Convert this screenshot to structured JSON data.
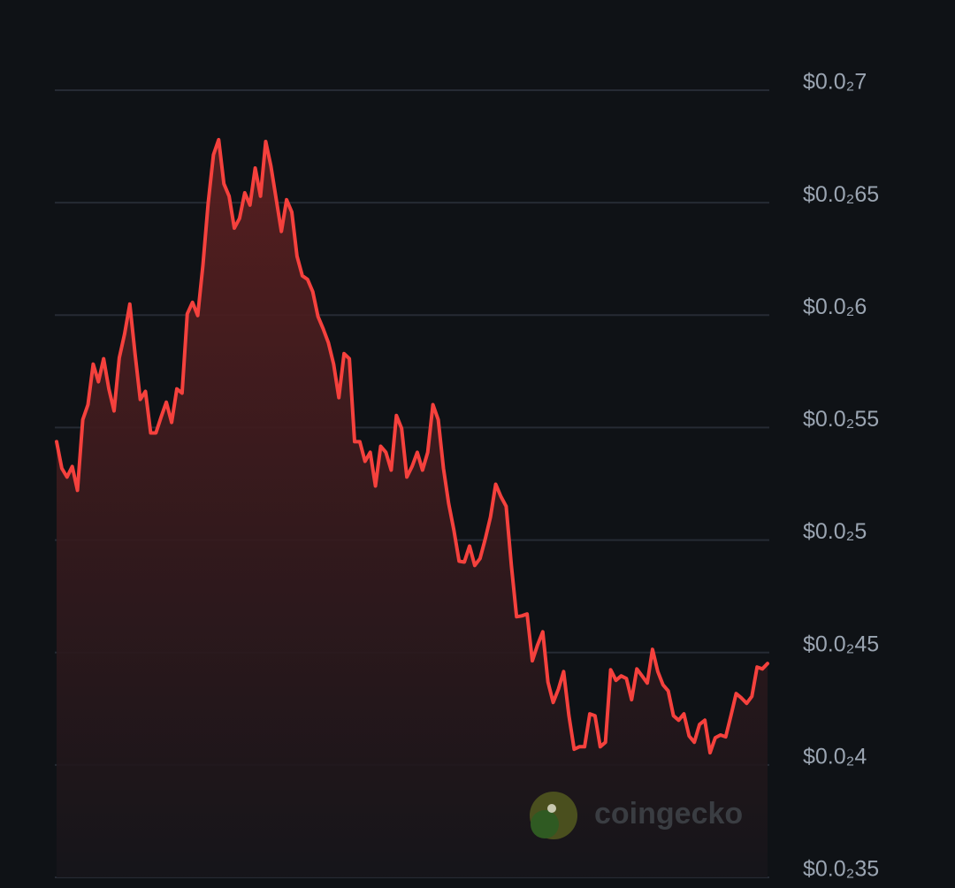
{
  "chart_data": {
    "type": "line",
    "watermark": "coingecko",
    "color": "#f5413d",
    "grid": true,
    "ylim": [
      0.0035,
      0.007
    ],
    "yticks": [
      {
        "value": 0.007,
        "label": "$0.0₂7"
      },
      {
        "value": 0.0065,
        "label": "$0.0₂65"
      },
      {
        "value": 0.006,
        "label": "$0.0₂6"
      },
      {
        "value": 0.0055,
        "label": "$0.0₂55"
      },
      {
        "value": 0.005,
        "label": "$0.0₂5"
      },
      {
        "value": 0.0045,
        "label": "$0.0₂45"
      },
      {
        "value": 0.004,
        "label": "$0.0₂4"
      },
      {
        "value": 0.0035,
        "label": "$0.0₂35"
      }
    ],
    "values": [
      0.005437,
      0.005319,
      0.00528,
      0.005327,
      0.005221,
      0.005535,
      0.005602,
      0.005782,
      0.005704,
      0.005806,
      0.005672,
      0.005574,
      0.00581,
      0.005916,
      0.006049,
      0.005829,
      0.005625,
      0.005661,
      0.005476,
      0.005476,
      0.005547,
      0.005613,
      0.005523,
      0.005672,
      0.005653,
      0.006006,
      0.006057,
      0.005998,
      0.006222,
      0.006497,
      0.006713,
      0.00678,
      0.006584,
      0.006529,
      0.006387,
      0.00643,
      0.006544,
      0.006489,
      0.006654,
      0.006529,
      0.006772,
      0.006662,
      0.006517,
      0.006372,
      0.006513,
      0.006458,
      0.006262,
      0.006175,
      0.006159,
      0.006104,
      0.005994,
      0.005939,
      0.005877,
      0.005782,
      0.005633,
      0.005829,
      0.005806,
      0.005437,
      0.005437,
      0.00535,
      0.00539,
      0.00524,
      0.005417,
      0.00539,
      0.005311,
      0.005554,
      0.005496,
      0.00528,
      0.005327,
      0.00539,
      0.005311,
      0.00539,
      0.005602,
      0.005535,
      0.005319,
      0.005162,
      0.005044,
      0.004906,
      0.004902,
      0.004973,
      0.004887,
      0.004918,
      0.005005,
      0.005103,
      0.005248,
      0.005193,
      0.00515,
      0.004887,
      0.004659,
      0.004663,
      0.004671,
      0.004463,
      0.004533,
      0.004592,
      0.004368,
      0.004278,
      0.004337,
      0.004415,
      0.004219,
      0.00407,
      0.004081,
      0.004081,
      0.004227,
      0.004219,
      0.004081,
      0.004101,
      0.004423,
      0.004376,
      0.004396,
      0.004384,
      0.00429,
      0.004427,
      0.004396,
      0.004364,
      0.004514,
      0.004415,
      0.004356,
      0.004329,
      0.004219,
      0.004199,
      0.004227,
      0.004129,
      0.004101,
      0.00418,
      0.004199,
      0.004054,
      0.004121,
      0.004133,
      0.004125,
      0.004219,
      0.004317,
      0.004298,
      0.004274,
      0.004305,
      0.004435,
      0.004427,
      0.004451
    ]
  }
}
